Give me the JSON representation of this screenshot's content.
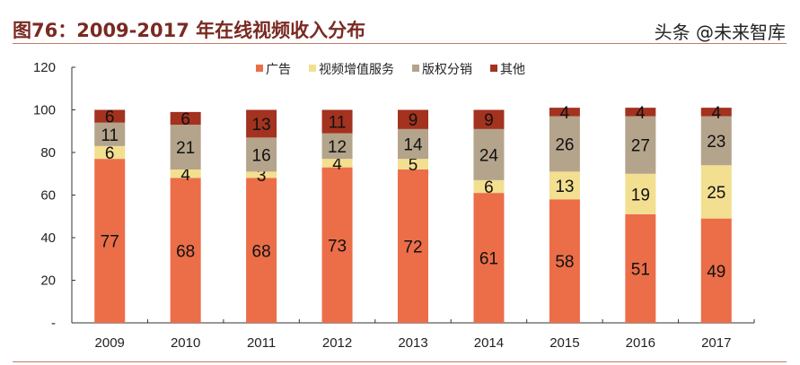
{
  "title": "图76：2009-2017 年在线视频收入分布",
  "watermark": "头条 @未来智库",
  "chart_data": {
    "type": "bar",
    "stacked": true,
    "title": "图76：2009-2017 年在线视频收入分布",
    "categories": [
      "2009",
      "2010",
      "2011",
      "2012",
      "2013",
      "2014",
      "2015",
      "2016",
      "2017"
    ],
    "series": [
      {
        "name": "广告",
        "color": "#EB6E49",
        "values": [
          77,
          68,
          68,
          73,
          72,
          61,
          58,
          51,
          49
        ]
      },
      {
        "name": "视频增值服务",
        "color": "#F3DF90",
        "values": [
          6,
          4,
          3,
          4,
          5,
          6,
          13,
          19,
          25
        ]
      },
      {
        "name": "版权分销",
        "color": "#B4A48B",
        "values": [
          11,
          21,
          16,
          12,
          14,
          24,
          26,
          27,
          23
        ]
      },
      {
        "name": "其他",
        "color": "#A3321F",
        "values": [
          6,
          6,
          13,
          11,
          9,
          9,
          4,
          4,
          4
        ]
      }
    ],
    "ylim": [
      0,
      120
    ],
    "yticks": [
      0,
      20,
      40,
      60,
      80,
      100,
      120
    ],
    "ytick_labels": [
      "-",
      "20",
      "40",
      "60",
      "80",
      "100",
      "120"
    ],
    "legend": "top-center",
    "grid": false
  }
}
